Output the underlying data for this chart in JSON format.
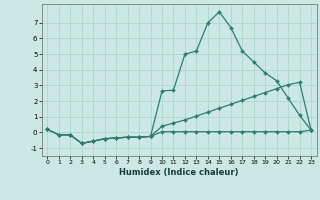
{
  "xlabel": "Humidex (Indice chaleur)",
  "xlim": [
    -0.5,
    23.5
  ],
  "ylim": [
    -1.5,
    8.2
  ],
  "yticks": [
    -1,
    0,
    1,
    2,
    3,
    4,
    5,
    6,
    7
  ],
  "xticks": [
    0,
    1,
    2,
    3,
    4,
    5,
    6,
    7,
    8,
    9,
    10,
    11,
    12,
    13,
    14,
    15,
    16,
    17,
    18,
    19,
    20,
    21,
    22,
    23
  ],
  "bg_color": "#cce8e4",
  "grid_color": "#b0d4cc",
  "line_color": "#2e7d6e",
  "line1_x": [
    0,
    1,
    2,
    3,
    4,
    5,
    6,
    7,
    8,
    9,
    10,
    11,
    12,
    13,
    14,
    15,
    16,
    17,
    18,
    19,
    20,
    21,
    22,
    23
  ],
  "line1_y": [
    0.2,
    -0.15,
    -0.15,
    -0.7,
    -0.55,
    -0.4,
    -0.35,
    -0.3,
    -0.3,
    -0.25,
    2.65,
    2.7,
    5.0,
    5.2,
    7.0,
    7.7,
    6.7,
    5.2,
    4.5,
    3.8,
    3.3,
    2.2,
    1.1,
    0.15
  ],
  "line2_x": [
    0,
    1,
    2,
    3,
    4,
    5,
    6,
    7,
    8,
    9,
    10,
    11,
    12,
    13,
    14,
    15,
    16,
    17,
    18,
    19,
    20,
    21,
    22,
    23
  ],
  "line2_y": [
    0.2,
    -0.15,
    -0.15,
    -0.7,
    -0.55,
    -0.4,
    -0.35,
    -0.3,
    -0.3,
    -0.25,
    0.4,
    0.6,
    0.8,
    1.05,
    1.3,
    1.55,
    1.8,
    2.05,
    2.3,
    2.55,
    2.8,
    3.05,
    3.2,
    0.15
  ],
  "line3_x": [
    0,
    1,
    2,
    3,
    4,
    5,
    6,
    7,
    8,
    9,
    10,
    11,
    12,
    13,
    14,
    15,
    16,
    17,
    18,
    19,
    20,
    21,
    22,
    23
  ],
  "line3_y": [
    0.2,
    -0.15,
    -0.15,
    -0.7,
    -0.55,
    -0.4,
    -0.35,
    -0.3,
    -0.3,
    -0.25,
    0.05,
    0.05,
    0.05,
    0.05,
    0.05,
    0.05,
    0.05,
    0.05,
    0.05,
    0.05,
    0.05,
    0.05,
    0.05,
    0.15
  ]
}
